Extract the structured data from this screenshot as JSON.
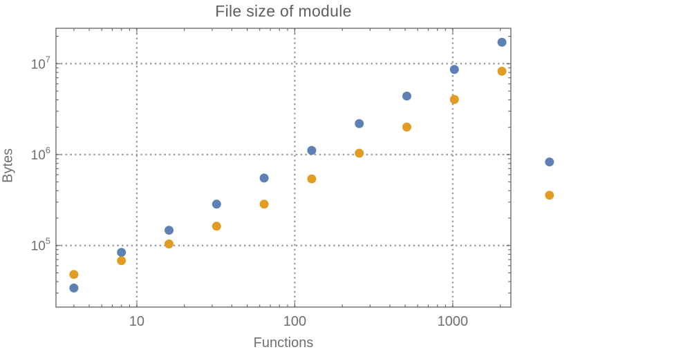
{
  "figure": {
    "title": "File size of module",
    "xlabel": "Functions",
    "ylabel": "Bytes"
  },
  "style": {
    "background": "#ffffff",
    "frame_color": "#6a6a6a",
    "grid_color": "#989898",
    "tick_label_color": "#6e6e6e",
    "title_color": "#5e5e5e",
    "series_blue": "#5e81b5",
    "series_orange": "#e19c24"
  },
  "chart_data": {
    "type": "scatter",
    "title": "File size of module",
    "xlabel": "Functions",
    "ylabel": "Bytes",
    "x_scale": "log",
    "y_scale": "log",
    "grid": "dotted-at-major-ticks",
    "legend_position": "none",
    "x_range": [
      3.08,
      2333
    ],
    "y_range": [
      21000,
      24500000
    ],
    "x": [
      4,
      8,
      16,
      32,
      64,
      128,
      256,
      512,
      1024,
      2048,
      4096
    ],
    "series": [
      {
        "name": "blue",
        "color": "#5e81b5",
        "values": [
          34000,
          84000,
          147000,
          285000,
          552000,
          1110000,
          2190000,
          4400000,
          8650000,
          17200000,
          830000
        ]
      },
      {
        "name": "orange",
        "color": "#e19c24",
        "values": [
          48000,
          68000,
          104000,
          163000,
          285000,
          540000,
          1035000,
          2010000,
          4040000,
          8260000,
          357000
        ]
      }
    ],
    "x_ticks_major": [
      {
        "value": 10,
        "label": "10"
      },
      {
        "value": 100,
        "label": "100"
      },
      {
        "value": 1000,
        "label": "1000"
      }
    ],
    "y_ticks_major": [
      {
        "value": 100000,
        "base": "10",
        "exp": "5"
      },
      {
        "value": 1000000,
        "base": "10",
        "exp": "6"
      },
      {
        "value": 10000000,
        "base": "10",
        "exp": "7"
      }
    ]
  }
}
